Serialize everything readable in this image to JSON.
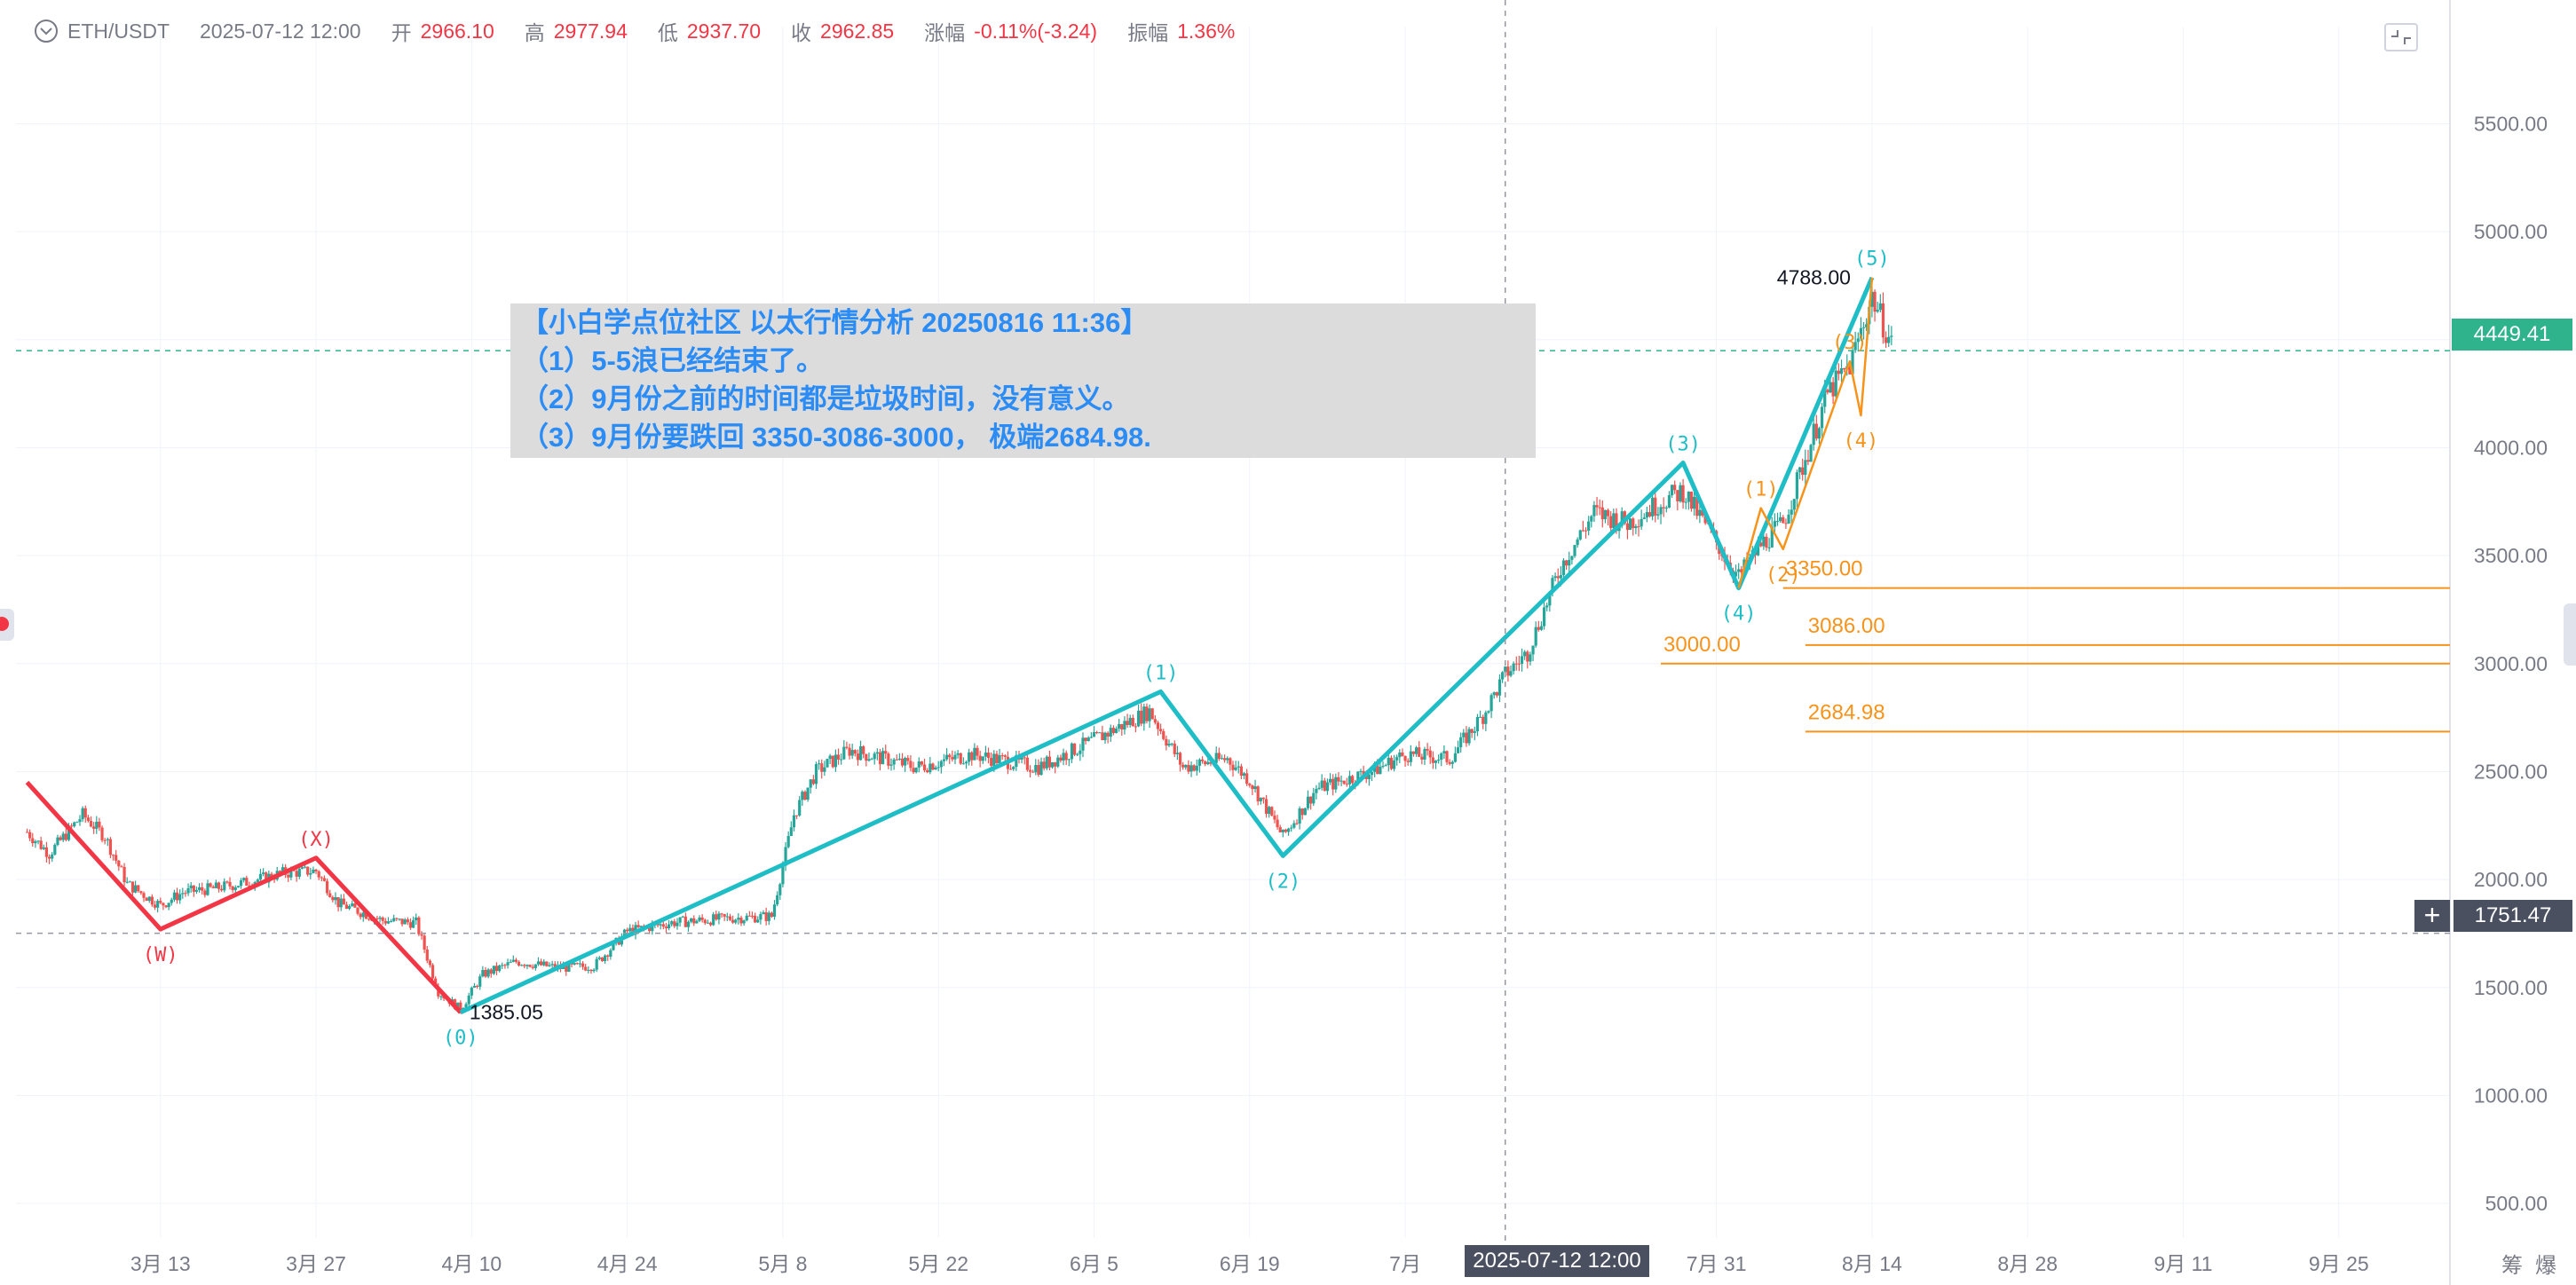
{
  "header": {
    "symbol": "ETH/USDT",
    "datetime": "2025-07-12 12:00",
    "open_label": "开",
    "open": "2966.10",
    "high_label": "高",
    "high": "2977.94",
    "low_label": "低",
    "low": "2937.70",
    "close_label": "收",
    "close": "2962.85",
    "change_label": "涨幅",
    "change": "-0.11%(-3.24)",
    "amplitude_label": "振幅",
    "amplitude": "1.36%"
  },
  "annotation": {
    "title": "【小白学点位社区 以太行情分析 20250816 11:36】",
    "line1": "（1）5-5浪已经结束了。",
    "line2": "（2）9月份之前的时间都是垃圾时间，没有意义。",
    "line3": "（3）9月份要跌回 3350-3086-3000， 极端2684.98."
  },
  "price_tags": {
    "current": "4449.41",
    "crosshair": "1751.47",
    "crosshair_time": "2025-07-12 12:00"
  },
  "corner": {
    "left": "筹",
    "right": "爆"
  },
  "colors": {
    "background": "#ffffff",
    "up": "#26a69a",
    "down": "#ef5350",
    "wave_main": "#1fbdc6",
    "wave_red": "#f23645",
    "wave_orange": "#f7931a",
    "title_blue": "#2b8cf6",
    "current_price": "#2fb38d",
    "tag_dark": "#4b5060"
  },
  "icons": {
    "collapse": "chevron-circle-down-icon",
    "expand": "fullscreen-icon",
    "crosshair": "plus-icon"
  },
  "chart_data": {
    "type": "candlestick",
    "symbol": "ETH/USDT",
    "y_ticks": [
      500,
      1000,
      1500,
      2000,
      2500,
      3000,
      3500,
      4000,
      4500,
      5000,
      5500
    ],
    "y_tick_labels": [
      "500.00",
      "1000.00",
      "1500.00",
      "2000.00",
      "2500.00",
      "3000.00",
      "3500.00",
      "4000.00",
      "4500.00",
      "5000.00",
      "5500.00"
    ],
    "ylim": [
      340,
      5950
    ],
    "xlim": [
      "2025-02-28",
      "2025-10-05"
    ],
    "x_ticks": [
      "2025-03-13",
      "2025-03-27",
      "2025-04-10",
      "2025-04-24",
      "2025-05-08",
      "2025-05-22",
      "2025-06-05",
      "2025-06-19",
      "2025-07-03",
      "2025-07-31",
      "2025-08-14",
      "2025-08-28",
      "2025-09-11",
      "2025-09-25"
    ],
    "x_tick_labels": [
      "3月 13",
      "3月 27",
      "4月 10",
      "4月 24",
      "5月 8",
      "5月 22",
      "6月 5",
      "6月 19",
      "7月",
      "7月 31",
      "8月 14",
      "8月 28",
      "9月 11",
      "9月 25"
    ],
    "price_path": [
      [
        "2025-03-01",
        2220
      ],
      [
        "2025-03-03",
        2120
      ],
      [
        "2025-03-06",
        2300
      ],
      [
        "2025-03-08",
        2200
      ],
      [
        "2025-03-10",
        1980
      ],
      [
        "2025-03-13",
        1880
      ],
      [
        "2025-03-15",
        1940
      ],
      [
        "2025-03-18",
        1960
      ],
      [
        "2025-03-21",
        1990
      ],
      [
        "2025-03-24",
        2030
      ],
      [
        "2025-03-27",
        2040
      ],
      [
        "2025-03-29",
        1890
      ],
      [
        "2025-04-02",
        1810
      ],
      [
        "2025-04-05",
        1800
      ],
      [
        "2025-04-07",
        1480
      ],
      [
        "2025-04-09",
        1400
      ],
      [
        "2025-04-11",
        1560
      ],
      [
        "2025-04-14",
        1620
      ],
      [
        "2025-04-18",
        1590
      ],
      [
        "2025-04-21",
        1600
      ],
      [
        "2025-04-24",
        1760
      ],
      [
        "2025-04-28",
        1800
      ],
      [
        "2025-05-03",
        1820
      ],
      [
        "2025-05-07",
        1830
      ],
      [
        "2025-05-09",
        2300
      ],
      [
        "2025-05-11",
        2500
      ],
      [
        "2025-05-14",
        2600
      ],
      [
        "2025-05-20",
        2520
      ],
      [
        "2025-05-25",
        2580
      ],
      [
        "2025-05-31",
        2520
      ],
      [
        "2025-06-04",
        2620
      ],
      [
        "2025-06-10",
        2780
      ],
      [
        "2025-06-13",
        2520
      ],
      [
        "2025-06-17",
        2560
      ],
      [
        "2025-06-19",
        2460
      ],
      [
        "2025-06-22",
        2200
      ],
      [
        "2025-06-25",
        2420
      ],
      [
        "2025-06-30",
        2500
      ],
      [
        "2025-07-03",
        2580
      ],
      [
        "2025-07-07",
        2560
      ],
      [
        "2025-07-10",
        2760
      ],
      [
        "2025-07-12",
        2950
      ],
      [
        "2025-07-14",
        3050
      ],
      [
        "2025-07-17",
        3450
      ],
      [
        "2025-07-20",
        3700
      ],
      [
        "2025-07-23",
        3650
      ],
      [
        "2025-07-26",
        3750
      ],
      [
        "2025-07-28",
        3800
      ],
      [
        "2025-08-02",
        3400
      ],
      [
        "2025-08-04",
        3550
      ],
      [
        "2025-08-06",
        3650
      ],
      [
        "2025-08-08",
        3950
      ],
      [
        "2025-08-10",
        4250
      ],
      [
        "2025-08-12",
        4380
      ],
      [
        "2025-08-14",
        4700
      ],
      [
        "2025-08-16",
        4449
      ]
    ],
    "waves": [
      {
        "color": "wave_red",
        "points": [
          [
            "2025-03-01",
            2450
          ],
          [
            "2025-03-13",
            1770
          ],
          [
            "2025-03-27",
            2100
          ],
          [
            "2025-04-09",
            1385
          ]
        ]
      },
      {
        "color": "wave_main",
        "points": [
          [
            "2025-04-09",
            1385
          ],
          [
            "2025-06-11",
            2870
          ],
          [
            "2025-06-22",
            2110
          ],
          [
            "2025-07-28",
            3930
          ],
          [
            "2025-08-02",
            3350
          ],
          [
            "2025-08-14",
            4788
          ]
        ]
      },
      {
        "color": "wave_orange",
        "points": [
          [
            "2025-08-02",
            3350
          ],
          [
            "2025-08-04",
            3720
          ],
          [
            "2025-08-06",
            3530
          ],
          [
            "2025-08-12",
            4400
          ],
          [
            "2025-08-13",
            4150
          ],
          [
            "2025-08-14",
            4788
          ]
        ]
      }
    ],
    "wave_labels": [
      {
        "text": "(W)",
        "date": "2025-03-13",
        "price": 1770,
        "color": "wave_red",
        "pos": "below"
      },
      {
        "text": "(X)",
        "date": "2025-03-27",
        "price": 2100,
        "color": "wave_red",
        "pos": "above"
      },
      {
        "text": "(0)",
        "date": "2025-04-09",
        "price": 1385,
        "color": "wave_main",
        "pos": "below"
      },
      {
        "text": "(1)",
        "date": "2025-06-11",
        "price": 2870,
        "color": "wave_main",
        "pos": "above"
      },
      {
        "text": "(2)",
        "date": "2025-06-22",
        "price": 2110,
        "color": "wave_main",
        "pos": "below"
      },
      {
        "text": "(3)",
        "date": "2025-07-28",
        "price": 3930,
        "color": "wave_main",
        "pos": "above"
      },
      {
        "text": "(4)",
        "date": "2025-08-02",
        "price": 3350,
        "color": "wave_main",
        "pos": "below"
      },
      {
        "text": "(1)",
        "date": "2025-08-04",
        "price": 3720,
        "color": "wave_orange",
        "pos": "above"
      },
      {
        "text": "(2)",
        "date": "2025-08-06",
        "price": 3530,
        "color": "wave_orange",
        "pos": "below"
      },
      {
        "text": "(3)",
        "date": "2025-08-12",
        "price": 4400,
        "color": "wave_orange",
        "pos": "above"
      },
      {
        "text": "(4)",
        "date": "2025-08-13",
        "price": 4150,
        "color": "wave_orange",
        "pos": "below"
      },
      {
        "text": "(5)",
        "date": "2025-08-14",
        "price": 4788,
        "color": "wave_main",
        "pos": "above"
      }
    ],
    "price_labels": [
      {
        "text": "1385.05",
        "date": "2025-04-09",
        "price": 1385
      },
      {
        "text": "4788.00",
        "date": "2025-08-14",
        "price": 4788
      }
    ],
    "target_levels": [
      {
        "label": "3350.00",
        "price": 3350,
        "start": "2025-08-06"
      },
      {
        "label": "3086.00",
        "price": 3086,
        "start": "2025-08-08"
      },
      {
        "label": "3000.00",
        "price": 3000,
        "start": "2025-07-26"
      },
      {
        "label": "2684.98",
        "price": 2684.98,
        "start": "2025-08-08"
      }
    ],
    "current_price": 4449.41,
    "crosshair": {
      "date": "2025-07-12",
      "price": 1751.47
    },
    "grid": true
  }
}
